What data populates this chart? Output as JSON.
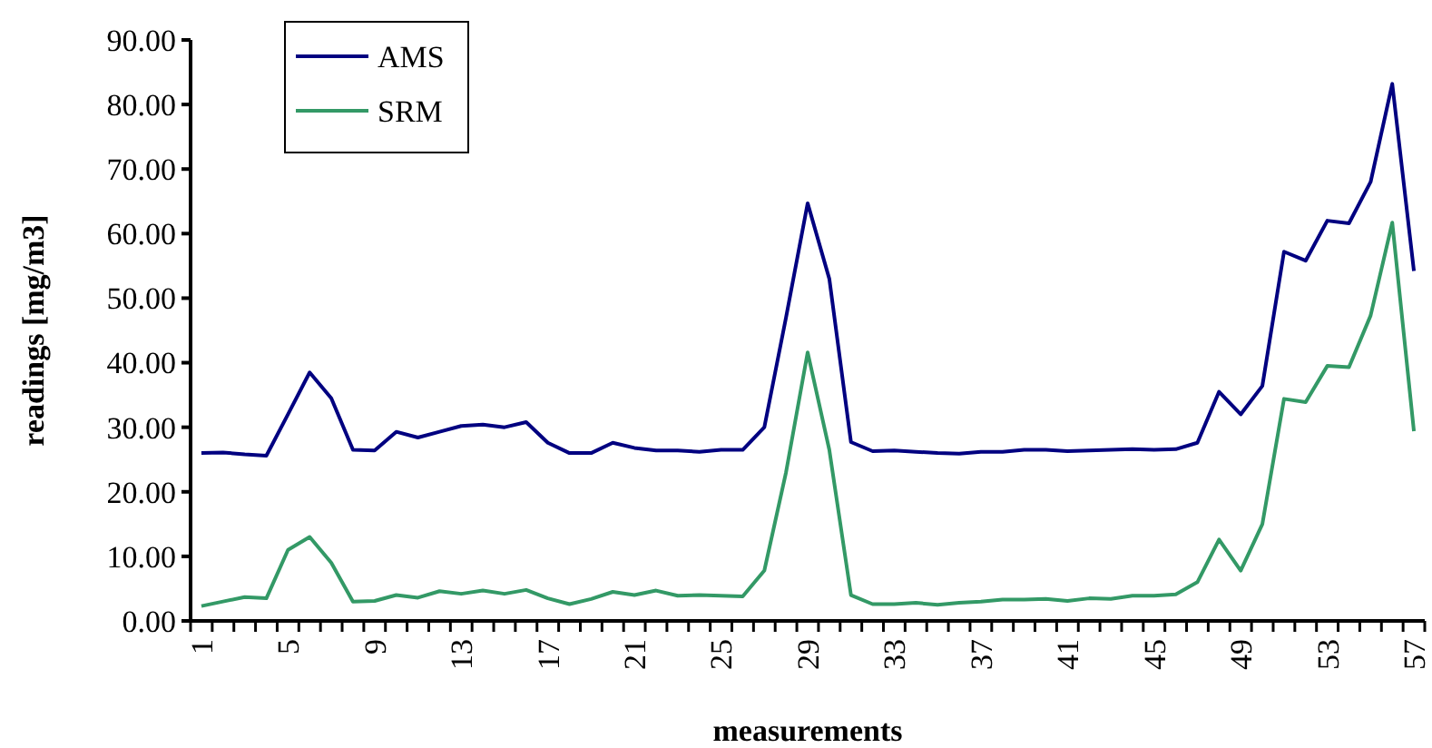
{
  "chart_data": {
    "type": "line",
    "xlabel": "measurements",
    "ylabel": "readings [mg/m3]",
    "categories": [
      "1",
      null,
      null,
      null,
      "5",
      null,
      null,
      null,
      "9",
      null,
      null,
      null,
      "13",
      null,
      null,
      null,
      "17",
      null,
      null,
      null,
      "21",
      null,
      null,
      null,
      "25",
      null,
      null,
      null,
      "29",
      null,
      null,
      null,
      "33",
      null,
      null,
      null,
      "37",
      null,
      null,
      null,
      "41",
      null,
      null,
      null,
      "45",
      null,
      null,
      null,
      "49",
      null,
      null,
      null,
      "53",
      null,
      null,
      null,
      "57"
    ],
    "series": [
      {
        "name": "AMS",
        "color": "#000080",
        "values": [
          26.0,
          26.1,
          25.8,
          25.6,
          32,
          38.5,
          34.5,
          26.5,
          26.4,
          29.3,
          28.4,
          29.3,
          30.2,
          30.4,
          30.0,
          30.8,
          27.6,
          26.0,
          26.0,
          27.6,
          26.8,
          26.4,
          26.4,
          26.2,
          26.5,
          26.5,
          30.0,
          47,
          64.7,
          53,
          27.7,
          26.3,
          26.4,
          26.2,
          26.0,
          25.9,
          26.2,
          26.2,
          26.5,
          26.5,
          26.3,
          26.4,
          26.5,
          26.6,
          26.5,
          26.6,
          27.6,
          35.5,
          32.0,
          36.4,
          57.2,
          55.8,
          62.0,
          61.6,
          68,
          83.2,
          54.2
        ]
      },
      {
        "name": "SRM",
        "color": "#339966",
        "values": [
          2.3,
          3.0,
          3.7,
          3.5,
          11,
          13,
          9.0,
          3.0,
          3.1,
          4.0,
          3.6,
          4.6,
          4.2,
          4.7,
          4.2,
          4.8,
          3.5,
          2.6,
          3.4,
          4.5,
          4.0,
          4.7,
          3.9,
          4.0,
          3.9,
          3.8,
          7.8,
          23,
          41.6,
          26.5,
          4.0,
          2.6,
          2.6,
          2.8,
          2.5,
          2.8,
          3.0,
          3.3,
          3.3,
          3.4,
          3.1,
          3.5,
          3.4,
          3.9,
          3.9,
          4.1,
          6.0,
          12.6,
          7.8,
          15.0,
          34.4,
          33.9,
          39.5,
          39.3,
          47.3,
          61.7,
          29.4
        ]
      }
    ],
    "ylim": [
      0,
      90
    ],
    "yticks": [
      {
        "value": 0,
        "label": "0.00"
      },
      {
        "value": 10,
        "label": "10.00"
      },
      {
        "value": 20,
        "label": "20.00"
      },
      {
        "value": 30,
        "label": "30.00"
      },
      {
        "value": 40,
        "label": "40.00"
      },
      {
        "value": 50,
        "label": "50.00"
      },
      {
        "value": 60,
        "label": "60.00"
      },
      {
        "value": 70,
        "label": "70.00"
      },
      {
        "value": 80,
        "label": "80.00"
      },
      {
        "value": 90,
        "label": "90.00"
      }
    ],
    "grid": false,
    "legend": "top left",
    "marker": "none",
    "line_style": "solid"
  }
}
